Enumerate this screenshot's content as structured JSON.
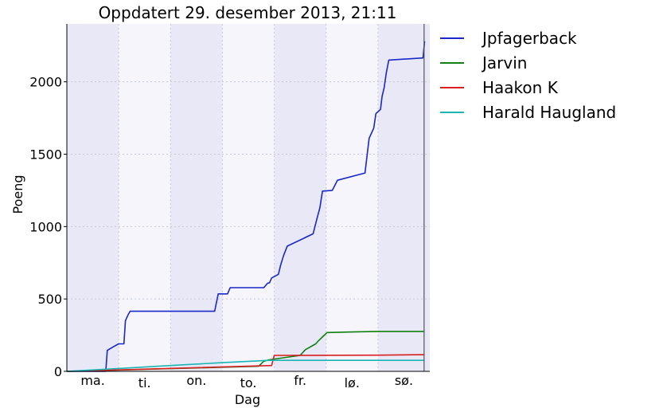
{
  "chart_data": {
    "type": "line",
    "title": "Oppdatert 29. desember 2013, 21:11",
    "xlabel": "Dag",
    "ylabel": "Poeng",
    "xlim": [
      0,
      7
    ],
    "ylim": [
      0,
      2400
    ],
    "grid": true,
    "legend_position": "outside-right",
    "x_categories": [
      "ma.",
      "ti.",
      "on.",
      "to.",
      "fr.",
      "lø.",
      "sø."
    ],
    "y_ticks": [
      0,
      500,
      1000,
      1500,
      2000
    ],
    "y_tick_labels": [
      "0",
      "500",
      "1000",
      "1500",
      "2000"
    ],
    "shaded_days": [
      0,
      2,
      4,
      6
    ],
    "current_time_x": 6.89,
    "colors": {
      "band_dark": "#e8e8f6",
      "band_light": "#f5f5fb",
      "grid": "#c8c8d8",
      "now_line": "#555555"
    },
    "series": [
      {
        "name": "Jpfagerback",
        "color": "#1a27c9",
        "points": [
          [
            0,
            0
          ],
          [
            0.75,
            0
          ],
          [
            0.78,
            145
          ],
          [
            0.9,
            170
          ],
          [
            1.0,
            190
          ],
          [
            1.1,
            190
          ],
          [
            1.13,
            350
          ],
          [
            1.18,
            390
          ],
          [
            1.22,
            415
          ],
          [
            2.85,
            415
          ],
          [
            2.92,
            535
          ],
          [
            3.1,
            535
          ],
          [
            3.15,
            578
          ],
          [
            3.8,
            578
          ],
          [
            3.87,
            608
          ],
          [
            3.91,
            612
          ],
          [
            3.95,
            645
          ],
          [
            4.08,
            670
          ],
          [
            4.12,
            730
          ],
          [
            4.18,
            800
          ],
          [
            4.25,
            865
          ],
          [
            4.75,
            950
          ],
          [
            4.82,
            1050
          ],
          [
            4.88,
            1130
          ],
          [
            4.93,
            1245
          ],
          [
            5.12,
            1250
          ],
          [
            5.22,
            1320
          ],
          [
            5.75,
            1370
          ],
          [
            5.83,
            1610
          ],
          [
            5.92,
            1680
          ],
          [
            5.96,
            1780
          ],
          [
            6.05,
            1810
          ],
          [
            6.08,
            1900
          ],
          [
            6.12,
            1960
          ],
          [
            6.16,
            2060
          ],
          [
            6.21,
            2150
          ],
          [
            6.87,
            2165
          ],
          [
            6.9,
            2280
          ]
        ]
      },
      {
        "name": "Jarvin",
        "color": "#0f7f12",
        "points": [
          [
            0,
            0
          ],
          [
            0.6,
            5
          ],
          [
            3.7,
            35
          ],
          [
            3.8,
            70
          ],
          [
            3.9,
            80
          ],
          [
            4.5,
            110
          ],
          [
            4.6,
            150
          ],
          [
            4.8,
            190
          ],
          [
            4.85,
            210
          ],
          [
            4.95,
            245
          ],
          [
            5.02,
            268
          ],
          [
            5.5,
            272
          ],
          [
            6.0,
            276
          ],
          [
            6.9,
            276
          ]
        ]
      },
      {
        "name": "Haakon K",
        "color": "#d91f1f",
        "points": [
          [
            0,
            0
          ],
          [
            0.5,
            5
          ],
          [
            3.95,
            40
          ],
          [
            4.0,
            110
          ],
          [
            6.0,
            112
          ],
          [
            6.9,
            115
          ]
        ]
      },
      {
        "name": "Harald Haugland",
        "color": "#1ab5b5",
        "points": [
          [
            0,
            0
          ],
          [
            1.0,
            20
          ],
          [
            2.0,
            40
          ],
          [
            3.0,
            60
          ],
          [
            3.9,
            76
          ],
          [
            6.9,
            76
          ]
        ]
      }
    ]
  }
}
